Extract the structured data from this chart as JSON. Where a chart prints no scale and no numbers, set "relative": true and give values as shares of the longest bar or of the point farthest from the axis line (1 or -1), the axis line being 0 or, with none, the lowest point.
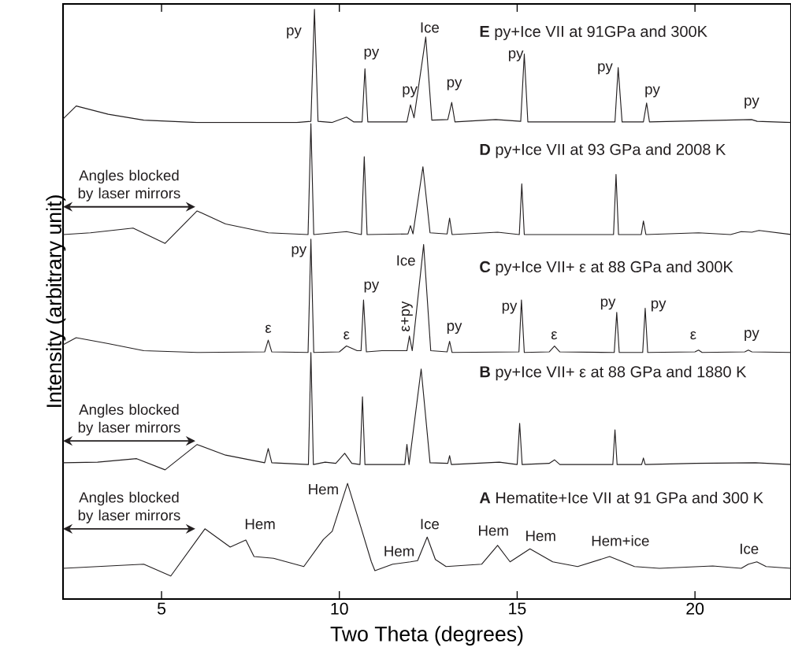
{
  "chart_data": {
    "type": "line",
    "relative": true,
    "xlabel": "Two Theta (degrees)",
    "ylabel": "Intensity (arbitrary unit)",
    "xlim": [
      2.23,
      22.7
    ],
    "xticks": [
      5,
      10,
      15,
      20
    ],
    "tick_labels": "x",
    "series": [
      {
        "color": "#231f20",
        "x": [
          2.23,
          2.6,
          3.5,
          4.5,
          6,
          8.8,
          9.2,
          9.3,
          9.4,
          9.8,
          10.2,
          10.4,
          10.64,
          10.72,
          10.8,
          11.9,
          12.0,
          12.1,
          12.43,
          12.6,
          13.05,
          13.16,
          13.25,
          14.4,
          15.1,
          15.2,
          15.3,
          17.75,
          17.84,
          17.95,
          18.55,
          18.64,
          18.72,
          21.59,
          21.75,
          22.7
        ],
        "values": [
          0.814,
          0.836,
          0.822,
          0.812,
          0.808,
          0.808,
          0.81,
          1,
          0.81,
          0.808,
          0.817,
          0.809,
          0.809,
          0.899,
          0.809,
          0.809,
          0.838,
          0.816,
          0.953,
          0.812,
          0.813,
          0.842,
          0.809,
          0.813,
          0.81,
          0.924,
          0.809,
          0.809,
          0.901,
          0.809,
          0.809,
          0.841,
          0.809,
          0.813,
          0.81,
          0.808
        ]
      },
      {
        "color": "#231f20",
        "x": [
          2.23,
          3.0,
          4.2,
          5.1,
          6.0,
          6.8,
          8,
          9.12,
          9.2,
          9.28,
          10.2,
          10.62,
          10.7,
          10.78,
          11.93,
          12.0,
          12.07,
          12.35,
          12.55,
          13.03,
          13.1,
          13.17,
          14.45,
          15.06,
          15.13,
          15.2,
          17.71,
          17.78,
          17.85,
          18.49,
          18.55,
          18.62,
          20.1,
          21.0,
          21.3,
          21.6,
          21.8,
          22.7
        ],
        "values": [
          0.618,
          0.621,
          0.629,
          0.603,
          0.658,
          0.636,
          0.621,
          0.618,
          0.806,
          0.618,
          0.623,
          0.618,
          0.75,
          0.618,
          0.619,
          0.633,
          0.619,
          0.733,
          0.621,
          0.619,
          0.646,
          0.618,
          0.622,
          0.618,
          0.704,
          0.618,
          0.618,
          0.72,
          0.618,
          0.618,
          0.641,
          0.618,
          0.621,
          0.618,
          0.623,
          0.622,
          0.625,
          0.618
        ]
      },
      {
        "color": "#231f20",
        "x": [
          2.23,
          2.6,
          3.5,
          4.5,
          6,
          7.9,
          8.0,
          8.1,
          9.12,
          9.2,
          9.28,
          10.0,
          10.2,
          10.5,
          10.61,
          10.68,
          10.76,
          11.2,
          11.9,
          11.97,
          12.05,
          12.37,
          12.57,
          13.03,
          13.1,
          13.17,
          15.05,
          15.12,
          15.2,
          15.9,
          16.05,
          16.2,
          17.73,
          17.8,
          17.87,
          18.53,
          18.6,
          18.67,
          20.0,
          20.1,
          20.2,
          21.4,
          21.5,
          21.6,
          22.7
        ],
        "values": [
          0.431,
          0.443,
          0.433,
          0.421,
          0.418,
          0.419,
          0.439,
          0.419,
          0.418,
          0.61,
          0.418,
          0.419,
          0.429,
          0.421,
          0.421,
          0.507,
          0.419,
          0.421,
          0.421,
          0.446,
          0.421,
          0.601,
          0.421,
          0.419,
          0.437,
          0.418,
          0.419,
          0.507,
          0.418,
          0.419,
          0.429,
          0.419,
          0.418,
          0.486,
          0.418,
          0.418,
          0.493,
          0.418,
          0.419,
          0.422,
          0.418,
          0.419,
          0.422,
          0.419,
          0.418
        ]
      },
      {
        "color": "#231f20",
        "x": [
          2.23,
          3.2,
          4.3,
          5.1,
          6.0,
          6.8,
          7.9,
          8.0,
          8.1,
          9.13,
          9.2,
          9.27,
          9.6,
          9.9,
          10.15,
          10.35,
          10.58,
          10.65,
          10.72,
          11.84,
          11.9,
          11.96,
          12.3,
          12.55,
          13.05,
          13.1,
          13.15,
          14.5,
          15.0,
          15.07,
          15.14,
          15.9,
          16.05,
          16.2,
          17.69,
          17.75,
          17.81,
          18.5,
          18.55,
          18.6,
          20.0,
          21.7,
          22.7
        ],
        "values": [
          0.231,
          0.232,
          0.238,
          0.219,
          0.262,
          0.244,
          0.231,
          0.255,
          0.231,
          0.228,
          0.418,
          0.228,
          0.232,
          0.23,
          0.247,
          0.23,
          0.228,
          0.343,
          0.228,
          0.228,
          0.262,
          0.228,
          0.39,
          0.231,
          0.23,
          0.243,
          0.228,
          0.232,
          0.228,
          0.298,
          0.228,
          0.23,
          0.236,
          0.228,
          0.228,
          0.287,
          0.228,
          0.228,
          0.239,
          0.228,
          0.23,
          0.231,
          0.228
        ]
      },
      {
        "color": "#231f20",
        "x": [
          2.23,
          4.5,
          5.26,
          6.22,
          6.93,
          7.37,
          7.6,
          8.15,
          9.0,
          9.55,
          9.8,
          10.23,
          10.6,
          10.9,
          11.0,
          11.5,
          12.0,
          12.2,
          12.47,
          12.7,
          13.0,
          14.0,
          14.45,
          14.8,
          15.36,
          16.0,
          16.7,
          17.6,
          18.3,
          19.0,
          20.5,
          21.3,
          21.5,
          21.74,
          22.0,
          22.7
        ],
        "values": [
          0.052,
          0.059,
          0.039,
          0.119,
          0.088,
          0.1,
          0.072,
          0.069,
          0.055,
          0.101,
          0.115,
          0.196,
          0.123,
          0.063,
          0.048,
          0.059,
          0.063,
          0.065,
          0.105,
          0.067,
          0.055,
          0.059,
          0.091,
          0.063,
          0.085,
          0.063,
          0.055,
          0.072,
          0.055,
          0.052,
          0.056,
          0.052,
          0.059,
          0.063,
          0.055,
          0.052
        ]
      }
    ],
    "annotations": [
      "**E** py+Ice VII  at 91GPa and 300K",
      "**D** py+Ice VII at 93 GPa and 2008 K",
      "**C** py+Ice VII+ ε at 88 GPa and 300K",
      "**B**  py+Ice VII+ ε at 88 GPa and 1880 K",
      "**A** Hematite+Ice VII at 91 GPa and 300 K",
      "Angles blocked by laser mirrors",
      "Angles blocked by laser mirrors",
      "Angles blocked by laser mirrors",
      "py",
      "py",
      "py",
      "Ice",
      "py",
      "py",
      "py",
      "py",
      "py",
      "py",
      "ε",
      "ε",
      "py",
      "ε+py",
      "Ice",
      "py",
      "py",
      "ε",
      "py",
      "py",
      "ε",
      "py",
      "Hem",
      "Hem",
      "Hem",
      "Ice",
      "Hem",
      "Hem",
      "Hem+ice",
      "Ice"
    ]
  }
}
